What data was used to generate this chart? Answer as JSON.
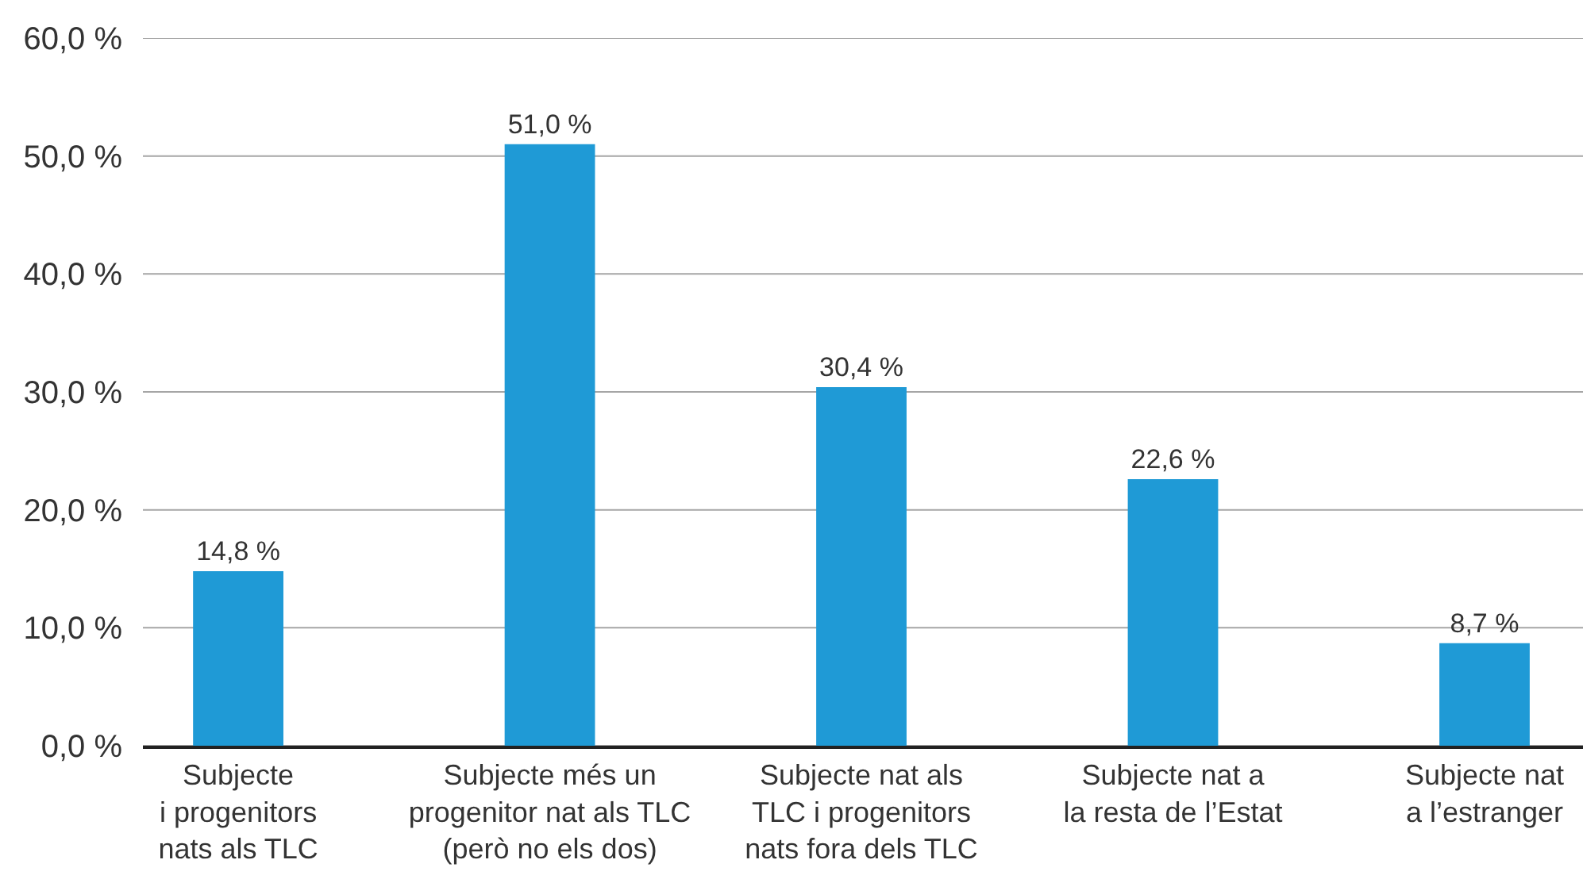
{
  "chart_data": {
    "type": "bar",
    "categories": [
      "Subjecte\ni progenitors\nnats als TLC",
      "Subjecte més un\nprogenitor nat als TLC\n(però no els dos)",
      "Subjecte nat als\nTLC i progenitors\nnats fora dels TLC",
      "Subjecte nat a\nla resta de l’Estat",
      "Subjecte nat\na l’estranger"
    ],
    "values": [
      14.8,
      51.0,
      30.4,
      22.6,
      8.7
    ],
    "value_labels": [
      "14,8 %",
      "51,0 %",
      "30,4 %",
      "22,6 %",
      "8,7 %"
    ],
    "color": "#1f9ad6",
    "ylim": [
      0,
      60
    ],
    "yticks": [
      {
        "value": 0,
        "label": "0,0 %"
      },
      {
        "value": 10,
        "label": "10,0 %"
      },
      {
        "value": 20,
        "label": "20,0 %"
      },
      {
        "value": 30,
        "label": "30,0 %"
      },
      {
        "value": 40,
        "label": "40,0 %"
      },
      {
        "value": 50,
        "label": "50,0 %"
      },
      {
        "value": 60,
        "label": "60,0 %"
      }
    ],
    "grid": "y"
  }
}
